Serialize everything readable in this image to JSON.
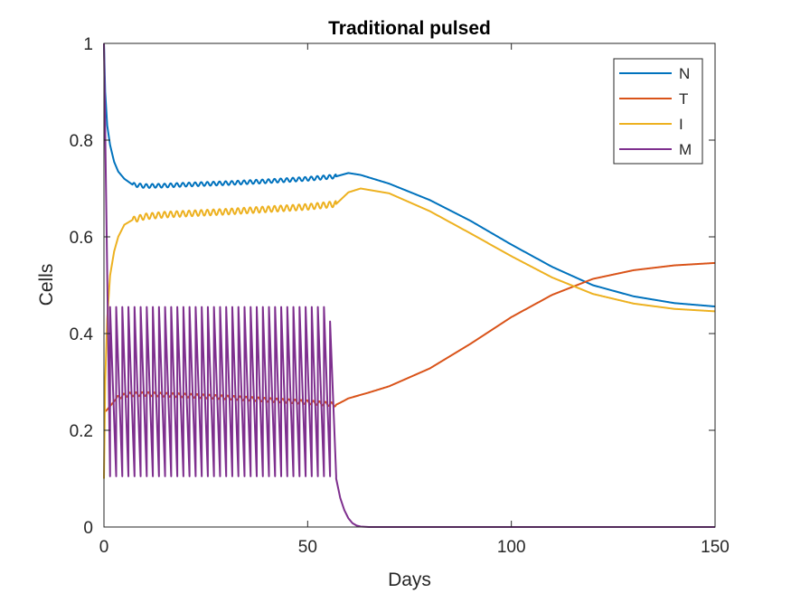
{
  "chart_data": {
    "type": "line",
    "title": "Traditional pulsed",
    "xlabel": "Days",
    "ylabel": "Cells",
    "xlim": [
      0,
      150
    ],
    "ylim": [
      0,
      1
    ],
    "xticks": [
      0,
      50,
      100,
      150
    ],
    "yticks": [
      0,
      0.2,
      0.4,
      0.6,
      0.8,
      1
    ],
    "xtick_labels": [
      "0",
      "50",
      "100",
      "150"
    ],
    "ytick_labels": [
      "0",
      "0.2",
      "0.4",
      "0.6",
      "0.8",
      "1"
    ],
    "grid": false,
    "legend_position": "top-right",
    "series": [
      {
        "name": "N",
        "color": "#0072BD",
        "x": [
          0,
          0.3,
          0.8,
          1.5,
          2.5,
          3.5,
          5,
          7,
          10,
          15,
          20,
          30,
          40,
          50,
          57,
          60,
          63,
          70,
          80,
          90,
          100,
          110,
          120,
          130,
          140,
          150
        ],
        "y": [
          1.0,
          0.9,
          0.83,
          0.79,
          0.755,
          0.735,
          0.72,
          0.708,
          0.705,
          0.706,
          0.708,
          0.711,
          0.715,
          0.72,
          0.725,
          0.732,
          0.728,
          0.71,
          0.676,
          0.633,
          0.584,
          0.538,
          0.5,
          0.477,
          0.463,
          0.456
        ],
        "oscillation": {
          "from": 7,
          "to": 57,
          "period": 1.5,
          "amplitude": 0.004
        }
      },
      {
        "name": "T",
        "color": "#D95319",
        "x": [
          0,
          0.5,
          1,
          2,
          3,
          4,
          6,
          10,
          20,
          30,
          40,
          50,
          57,
          58,
          60,
          65,
          70,
          80,
          90,
          100,
          110,
          120,
          130,
          140,
          150
        ],
        "y": [
          0.24,
          0.24,
          0.245,
          0.255,
          0.265,
          0.27,
          0.274,
          0.275,
          0.272,
          0.268,
          0.263,
          0.258,
          0.253,
          0.257,
          0.266,
          0.278,
          0.291,
          0.328,
          0.379,
          0.434,
          0.48,
          0.513,
          0.531,
          0.541,
          0.546
        ],
        "oscillation": {
          "from": 3,
          "to": 57,
          "period": 1.5,
          "amplitude": 0.004
        }
      },
      {
        "name": "I",
        "color": "#EDB120",
        "x": [
          0,
          0.3,
          0.8,
          1.5,
          2.5,
          3.5,
          5,
          7,
          10,
          15,
          20,
          30,
          40,
          50,
          57,
          60,
          63,
          70,
          80,
          90,
          100,
          110,
          120,
          130,
          140,
          150
        ],
        "y": [
          0.1,
          0.3,
          0.43,
          0.52,
          0.57,
          0.6,
          0.625,
          0.635,
          0.642,
          0.646,
          0.648,
          0.652,
          0.657,
          0.662,
          0.668,
          0.692,
          0.7,
          0.69,
          0.653,
          0.607,
          0.56,
          0.516,
          0.482,
          0.462,
          0.451,
          0.446
        ],
        "oscillation": {
          "from": 7,
          "to": 57,
          "period": 1.5,
          "amplitude": 0.006
        }
      },
      {
        "name": "M",
        "color": "#7E2F8E",
        "pulse": {
          "start": 0.0,
          "period": 1.5,
          "count": 38,
          "peak_first": 1.0,
          "peak": 0.455,
          "peak_last": 0.425,
          "trough": 0.105
        },
        "x": [
          57.0,
          58.0,
          59.0,
          60.0,
          61.0,
          62.0,
          63.0,
          65.0,
          70.0,
          80.0,
          100.0,
          150.0
        ],
        "y": [
          0.1,
          0.06,
          0.035,
          0.018,
          0.008,
          0.003,
          0.001,
          0.0,
          0.0,
          0.0,
          0.0,
          0.0
        ]
      }
    ]
  }
}
